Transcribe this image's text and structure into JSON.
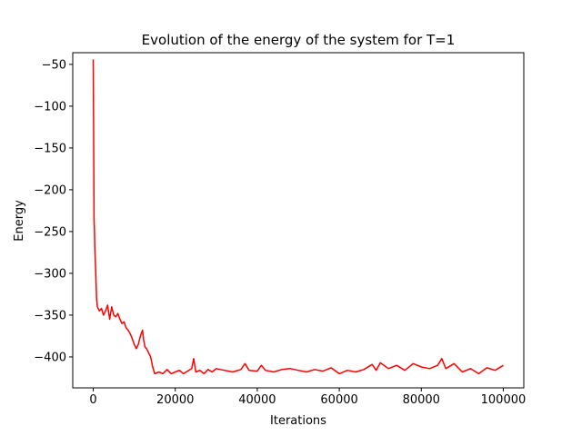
{
  "chart_data": {
    "type": "line",
    "title": "Evolution of the energy of the system for T=1",
    "xlabel": "Iterations",
    "ylabel": "Energy",
    "xlim": [
      -5000,
      105000
    ],
    "ylim": [
      -437,
      -36
    ],
    "xticks": [
      0,
      20000,
      40000,
      60000,
      80000,
      100000
    ],
    "xtick_labels": [
      "0",
      "20000",
      "40000",
      "60000",
      "80000",
      "100000"
    ],
    "yticks": [
      -50,
      -100,
      -150,
      -200,
      -250,
      -300,
      -350,
      -400
    ],
    "ytick_labels": [
      "−50",
      "−100",
      "−150",
      "−200",
      "−250",
      "−300",
      "−350",
      "−400"
    ],
    "grid": false,
    "series": [
      {
        "color": "#ff0000",
        "x": [
          0,
          80,
          200,
          300,
          400,
          600,
          800,
          1000,
          1500,
          2000,
          2500,
          3000,
          3500,
          4000,
          4500,
          5000,
          5500,
          6000,
          6500,
          7000,
          7500,
          8000,
          8500,
          9000,
          9500,
          10000,
          10500,
          11000,
          11500,
          12000,
          12300,
          12600,
          13000,
          13500,
          14000,
          14500,
          15000,
          16000,
          17000,
          18000,
          19000,
          20000,
          21000,
          22000,
          23000,
          24000,
          24500,
          25000,
          26000,
          27000,
          28000,
          29000,
          30000,
          32000,
          34000,
          36000,
          37000,
          38000,
          40000,
          41000,
          42000,
          44000,
          46000,
          48000,
          50000,
          52000,
          54000,
          56000,
          58000,
          60000,
          62000,
          64000,
          66000,
          68000,
          69000,
          70000,
          72000,
          74000,
          76000,
          78000,
          80000,
          82000,
          84000,
          85000,
          86000,
          88000,
          90000,
          92000,
          94000,
          96000,
          98000,
          100000
        ],
        "y": [
          -44,
          -120,
          -235,
          -250,
          -270,
          -300,
          -330,
          -340,
          -345,
          -342,
          -350,
          -345,
          -338,
          -355,
          -340,
          -350,
          -352,
          -348,
          -355,
          -360,
          -358,
          -365,
          -368,
          -372,
          -378,
          -385,
          -390,
          -385,
          -375,
          -368,
          -380,
          -388,
          -390,
          -395,
          -400,
          -412,
          -420,
          -418,
          -420,
          -415,
          -420,
          -418,
          -416,
          -420,
          -417,
          -414,
          -402,
          -418,
          -416,
          -420,
          -415,
          -418,
          -414,
          -416,
          -418,
          -415,
          -408,
          -416,
          -417,
          -410,
          -416,
          -418,
          -415,
          -414,
          -416,
          -418,
          -415,
          -417,
          -413,
          -420,
          -416,
          -418,
          -415,
          -409,
          -416,
          -407,
          -414,
          -410,
          -416,
          -408,
          -412,
          -414,
          -410,
          -402,
          -414,
          -408,
          -418,
          -414,
          -420,
          -413,
          -416,
          -410
        ]
      }
    ]
  }
}
